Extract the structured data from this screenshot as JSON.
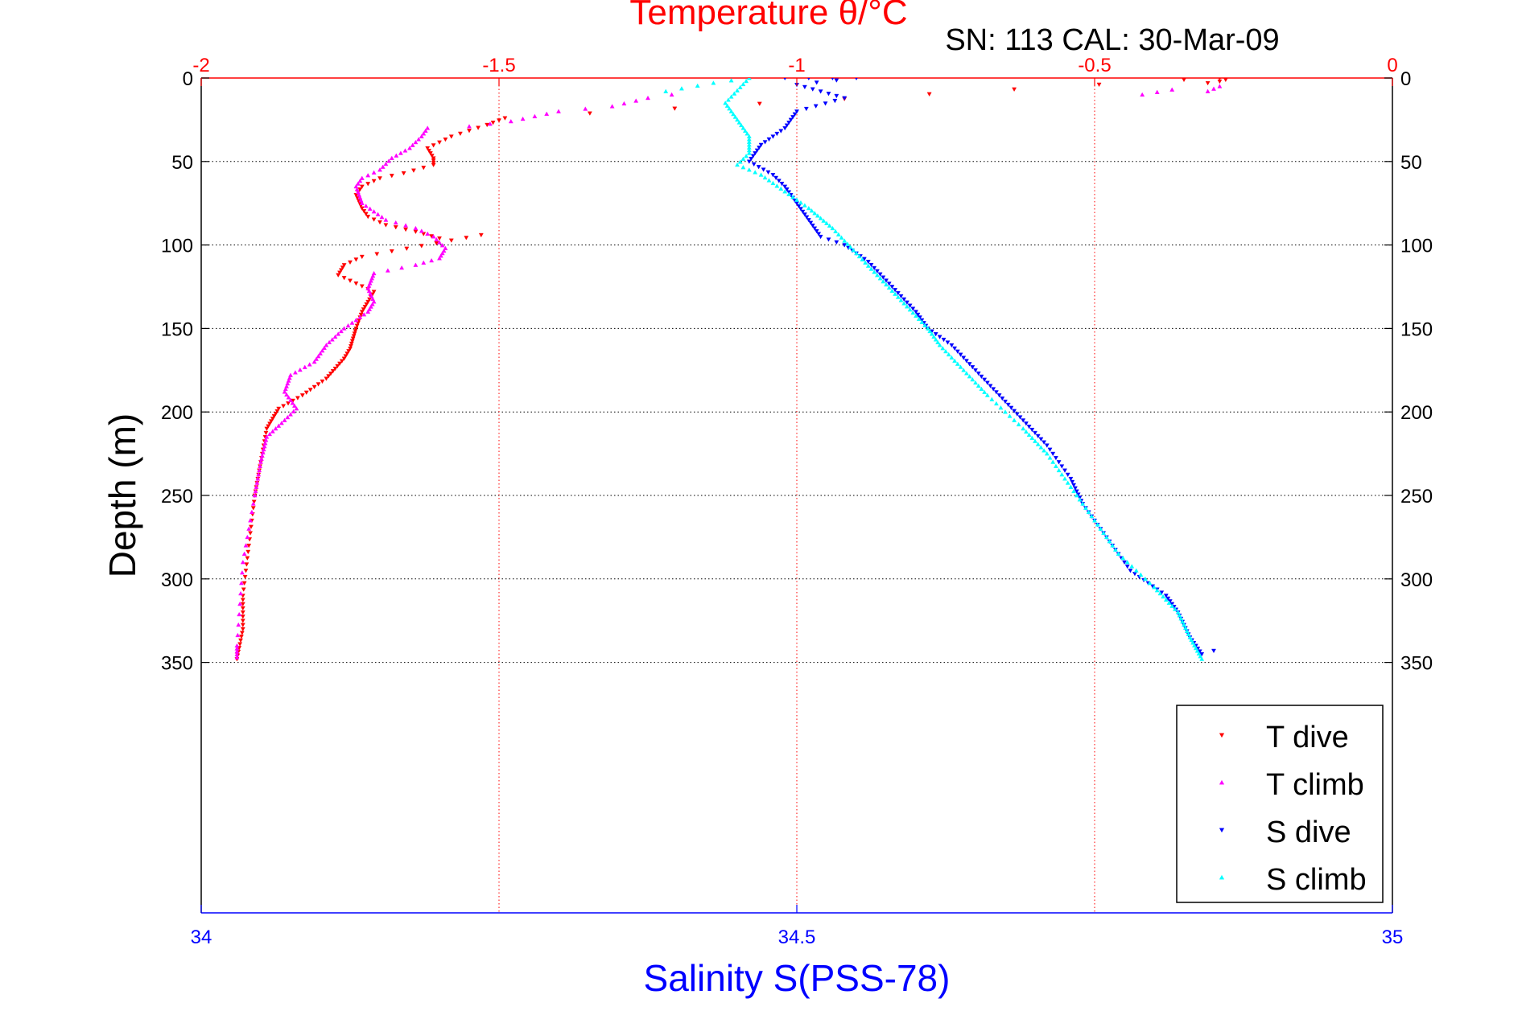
{
  "chart_data": {
    "type": "scatter",
    "title": "Temperature θ/°C",
    "subtitle": "SN: 113  CAL: 30-Mar-09",
    "ylabel": "Depth (m)",
    "xlabel": "Salinity S(PSS-78)",
    "y_axis": {
      "range": [
        0,
        500
      ],
      "reversed": true,
      "ticks": [
        0,
        50,
        100,
        150,
        200,
        250,
        300,
        350
      ],
      "tick_labels": [
        "0",
        "50",
        "100",
        "150",
        "200",
        "250",
        "300",
        "350"
      ]
    },
    "temperature_axis": {
      "position": "top",
      "range": [
        -2,
        0
      ],
      "ticks": [
        -2,
        -1.5,
        -1,
        -0.5,
        0
      ],
      "tick_labels": [
        "-2",
        "-1.5",
        "-1",
        "-0.5",
        "0"
      ],
      "color": "#ff0000"
    },
    "salinity_axis": {
      "position": "bottom",
      "range": [
        34,
        35
      ],
      "ticks": [
        34,
        34.5,
        35
      ],
      "tick_labels": [
        "34",
        "34.5",
        "35"
      ],
      "color": "#0000ff"
    },
    "grid": "dotted, at labeled ticks",
    "legend_position": "bottom-right",
    "series": [
      {
        "name": "T dive",
        "axis": "temperature",
        "color": "#ff0000",
        "marker": "triangle-down",
        "points": [
          [
            -0.29,
            0
          ],
          [
            -0.28,
            1
          ],
          [
            -0.29,
            2
          ],
          [
            -0.31,
            3
          ],
          [
            -0.35,
            1
          ],
          [
            -1.49,
            24
          ],
          [
            -1.52,
            28
          ],
          [
            -1.58,
            35
          ],
          [
            -1.62,
            42
          ],
          [
            -1.61,
            48
          ],
          [
            -1.61,
            52
          ],
          [
            -1.66,
            57
          ],
          [
            -1.7,
            60
          ],
          [
            -1.73,
            65
          ],
          [
            -1.74,
            70
          ],
          [
            -1.73,
            78
          ],
          [
            -1.72,
            83
          ],
          [
            -1.69,
            88
          ],
          [
            -1.64,
            92
          ],
          [
            -1.6,
            96
          ],
          [
            -1.53,
            94
          ],
          [
            -1.73,
            107
          ],
          [
            -1.76,
            112
          ],
          [
            -1.77,
            118
          ],
          [
            -1.71,
            128
          ],
          [
            -1.73,
            140
          ],
          [
            -1.74,
            150
          ],
          [
            -1.75,
            162
          ],
          [
            -1.76,
            168
          ],
          [
            -1.79,
            180
          ],
          [
            -1.83,
            190
          ],
          [
            -1.87,
            198
          ],
          [
            -1.89,
            210
          ],
          [
            -1.9,
            230
          ],
          [
            -1.91,
            250
          ],
          [
            -1.92,
            280
          ],
          [
            -1.93,
            310
          ],
          [
            -1.93,
            330
          ],
          [
            -1.94,
            348
          ]
        ]
      },
      {
        "name": "T climb",
        "axis": "temperature",
        "color": "#ff00ff",
        "marker": "triangle-up",
        "points": [
          [
            -0.29,
            5
          ],
          [
            -0.31,
            8
          ],
          [
            -0.37,
            7
          ],
          [
            -0.42,
            10
          ],
          [
            -1.21,
            10
          ],
          [
            -1.25,
            12
          ],
          [
            -1.31,
            17
          ],
          [
            -1.4,
            20
          ],
          [
            -1.48,
            26
          ],
          [
            -1.55,
            29
          ],
          [
            -1.62,
            30
          ],
          [
            -1.63,
            35
          ],
          [
            -1.65,
            42
          ],
          [
            -1.68,
            48
          ],
          [
            -1.7,
            55
          ],
          [
            -1.73,
            60
          ],
          [
            -1.74,
            65
          ],
          [
            -1.73,
            75
          ],
          [
            -1.69,
            85
          ],
          [
            -1.64,
            90
          ],
          [
            -1.61,
            95
          ],
          [
            -1.59,
            102
          ],
          [
            -1.6,
            108
          ],
          [
            -1.64,
            112
          ],
          [
            -1.71,
            117
          ],
          [
            -1.72,
            126
          ],
          [
            -1.71,
            134
          ],
          [
            -1.72,
            140
          ],
          [
            -1.76,
            150
          ],
          [
            -1.79,
            160
          ],
          [
            -1.81,
            170
          ],
          [
            -1.85,
            178
          ],
          [
            -1.86,
            188
          ],
          [
            -1.84,
            198
          ],
          [
            -1.86,
            205
          ],
          [
            -1.89,
            215
          ],
          [
            -1.9,
            230
          ],
          [
            -1.91,
            250
          ],
          [
            -1.93,
            290
          ],
          [
            -1.94,
            340
          ],
          [
            -1.94,
            347
          ]
        ]
      },
      {
        "name": "S dive",
        "axis": "salinity",
        "color": "#0000ff",
        "marker": "triangle-down",
        "points": [
          [
            34.49,
            0
          ],
          [
            34.51,
            0
          ],
          [
            34.53,
            0
          ],
          [
            34.55,
            0
          ],
          [
            34.5,
            4
          ],
          [
            34.52,
            8
          ],
          [
            34.54,
            12
          ],
          [
            34.5,
            20
          ],
          [
            34.49,
            30
          ],
          [
            34.47,
            40
          ],
          [
            34.46,
            50
          ],
          [
            34.48,
            58
          ],
          [
            34.49,
            65
          ],
          [
            34.5,
            75
          ],
          [
            34.51,
            85
          ],
          [
            34.52,
            95
          ],
          [
            34.54,
            100
          ],
          [
            34.56,
            110
          ],
          [
            34.58,
            125
          ],
          [
            34.6,
            140
          ],
          [
            34.61,
            150
          ],
          [
            34.63,
            160
          ],
          [
            34.65,
            175
          ],
          [
            34.67,
            190
          ],
          [
            34.69,
            205
          ],
          [
            34.71,
            220
          ],
          [
            34.73,
            240
          ],
          [
            34.74,
            255
          ],
          [
            34.76,
            275
          ],
          [
            34.78,
            295
          ],
          [
            34.81,
            310
          ],
          [
            34.82,
            320
          ],
          [
            34.83,
            335
          ],
          [
            34.84,
            345
          ],
          [
            34.85,
            343
          ]
        ]
      },
      {
        "name": "S climb",
        "axis": "salinity",
        "color": "#00ffff",
        "marker": "triangle-up",
        "points": [
          [
            34.39,
            8
          ],
          [
            34.43,
            3
          ],
          [
            34.46,
            0
          ],
          [
            34.44,
            15
          ],
          [
            34.45,
            25
          ],
          [
            34.46,
            35
          ],
          [
            34.46,
            45
          ],
          [
            34.45,
            52
          ],
          [
            34.47,
            58
          ],
          [
            34.49,
            68
          ],
          [
            34.51,
            78
          ],
          [
            34.53,
            90
          ],
          [
            34.55,
            105
          ],
          [
            34.57,
            120
          ],
          [
            34.59,
            135
          ],
          [
            34.61,
            150
          ],
          [
            34.62,
            160
          ],
          [
            34.64,
            175
          ],
          [
            34.66,
            190
          ],
          [
            34.69,
            210
          ],
          [
            34.71,
            225
          ],
          [
            34.73,
            245
          ],
          [
            34.75,
            265
          ],
          [
            34.77,
            285
          ],
          [
            34.8,
            305
          ],
          [
            34.82,
            320
          ],
          [
            34.83,
            335
          ],
          [
            34.84,
            348
          ]
        ]
      }
    ]
  }
}
